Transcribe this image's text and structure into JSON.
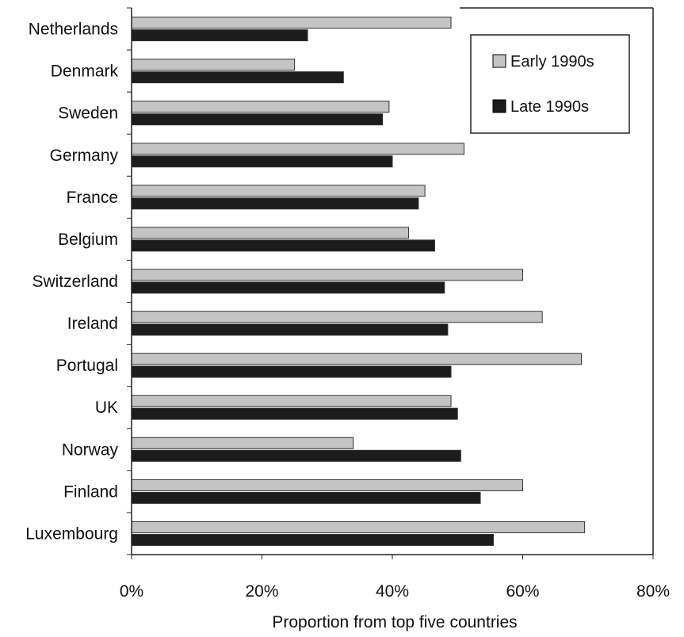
{
  "chart_data": {
    "type": "bar",
    "orientation": "horizontal",
    "categories": [
      "Netherlands",
      "Denmark",
      "Sweden",
      "Germany",
      "France",
      "Belgium",
      "Switzerland",
      "Ireland",
      "Portugal",
      "UK",
      "Norway",
      "Finland",
      "Luxembourg"
    ],
    "series": [
      {
        "name": "Early 1990s",
        "values": [
          49,
          25,
          39.5,
          51,
          45,
          42.5,
          60,
          63,
          69,
          49,
          34,
          60,
          69.5
        ],
        "color": "#c4c4c4"
      },
      {
        "name": "Late 1990s",
        "values": [
          27,
          32.5,
          38.5,
          40,
          44,
          46.5,
          48,
          48.5,
          49,
          50,
          50.5,
          53.5,
          55.5
        ],
        "color": "#1c1c1c"
      }
    ],
    "xlabel": "Proportion from top five countries",
    "ylabel": "",
    "title": "",
    "xlim": [
      0,
      80
    ],
    "xticks": [
      "0%",
      "20%",
      "40%",
      "60%",
      "80%"
    ],
    "grid": false,
    "legend_position": "top-right"
  }
}
